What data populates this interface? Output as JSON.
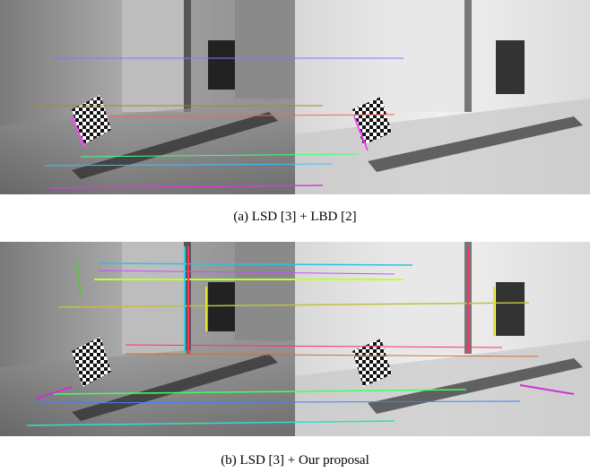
{
  "figure": {
    "panels": [
      {
        "caption": "(a) LSD [3] + LBD [2]"
      },
      {
        "caption": "(b) LSD [3] + Our proposal"
      }
    ]
  }
}
